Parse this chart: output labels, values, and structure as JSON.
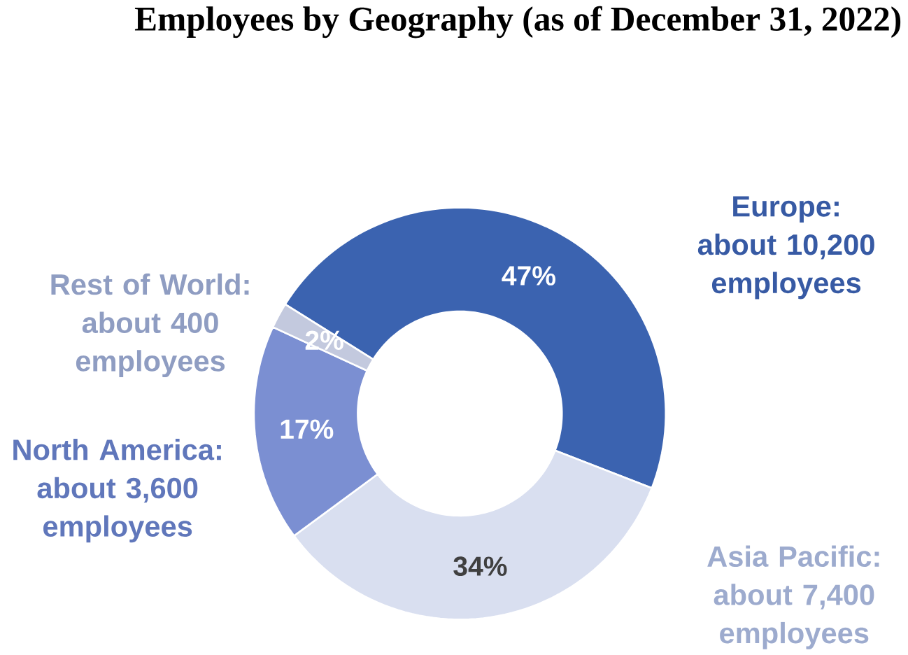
{
  "chart_data": {
    "type": "donut",
    "title": "Employees by Geography (as of December 31, 2022)",
    "categories": [
      "Europe: about 10,200 employees",
      "Asia Pacific: about 7,400 employees",
      "North America: about 3,600 employees",
      "Rest of World: about 400 employees"
    ],
    "values": [
      47,
      34,
      17,
      2
    ],
    "value_labels": [
      "47%",
      "34%",
      "17%",
      "2%"
    ],
    "colors": [
      "#3b63b0",
      "#d9dff0",
      "#7b8fd2",
      "#c3c9de"
    ]
  }
}
